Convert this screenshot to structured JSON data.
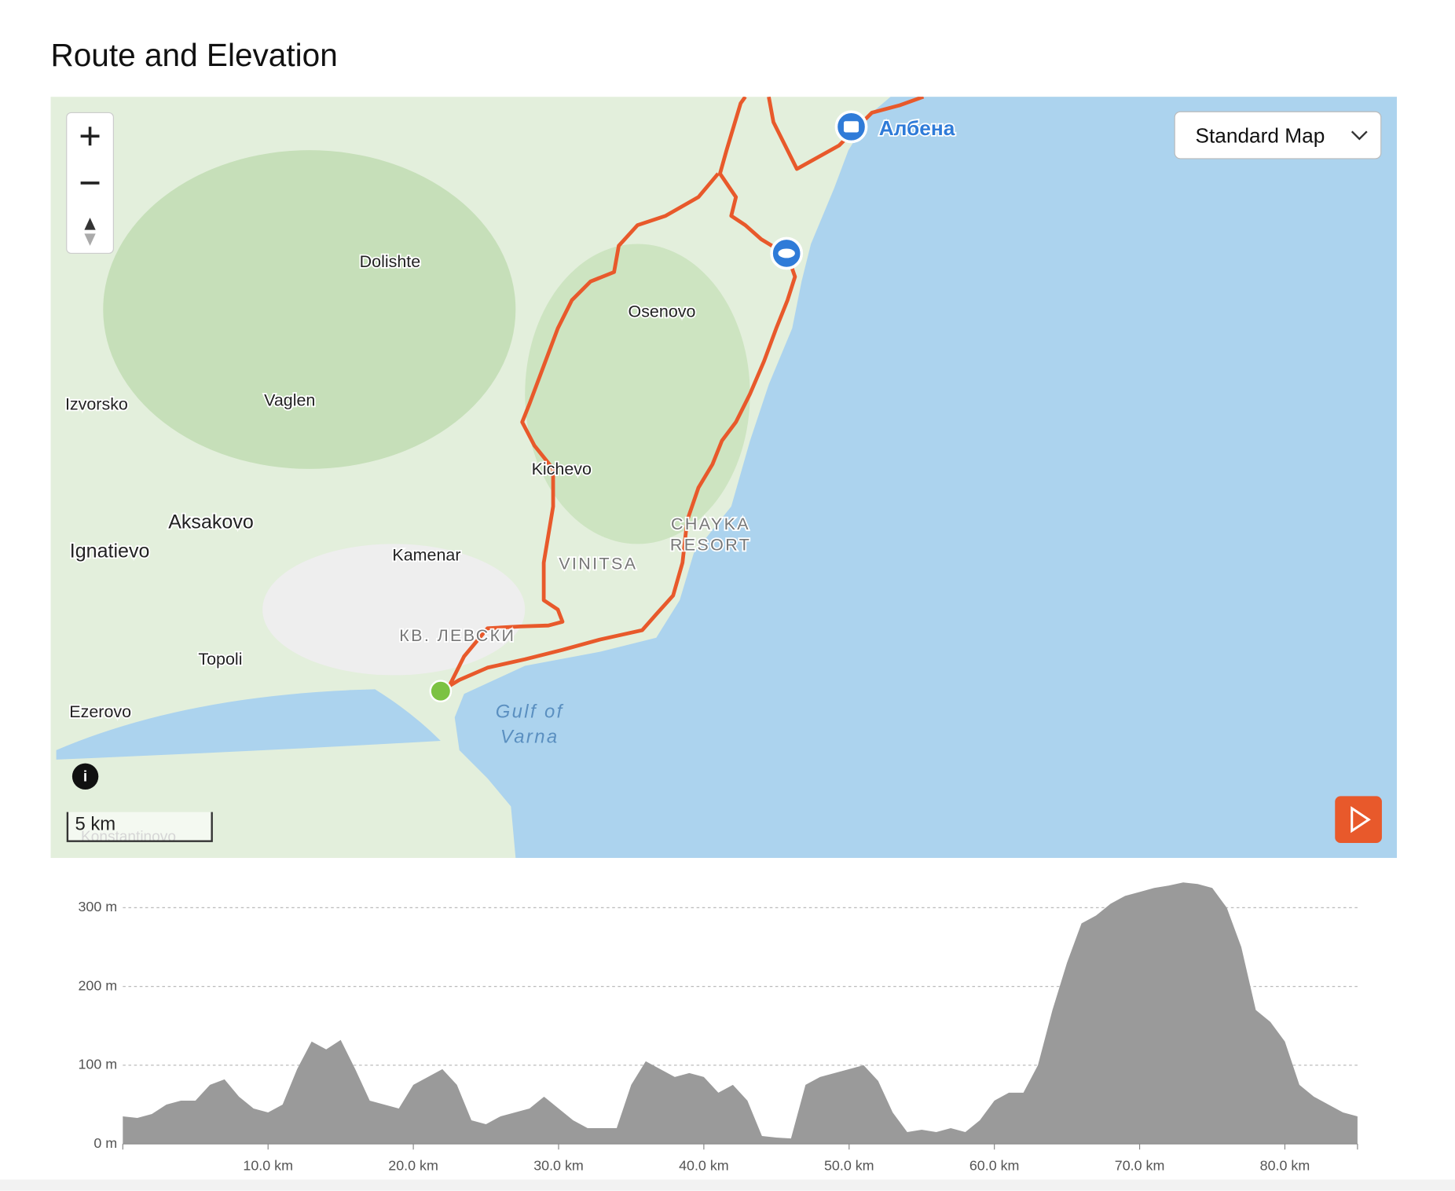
{
  "title": "Route and Elevation",
  "map": {
    "place_labels": [
      "Dolishte",
      "Osenovo",
      "Izvorsko",
      "Vaglen",
      "Kichevo",
      "Aksakovo",
      "Ignatievo",
      "Kamenar",
      "VINITSA",
      "CHAYKA",
      "RESORT",
      "КВ. ЛЕВСКИ",
      "Topoli",
      "Ezerovo",
      "Gulf of",
      "Varna",
      "Албена",
      "Konstantinovo"
    ],
    "map_style": "Standard Map",
    "scale_label": "5 km"
  },
  "chart_data": {
    "type": "area",
    "x": [
      0,
      1,
      2,
      3,
      4,
      5,
      6,
      7,
      8,
      9,
      10,
      11,
      12,
      13,
      14,
      15,
      16,
      17,
      18,
      19,
      20,
      21,
      22,
      23,
      24,
      25,
      26,
      27,
      28,
      29,
      30,
      31,
      32,
      33,
      34,
      35,
      36,
      37,
      38,
      39,
      40,
      41,
      42,
      43,
      44,
      45,
      46,
      47,
      48,
      49,
      50,
      51,
      52,
      53,
      54,
      55,
      56,
      57,
      58,
      59,
      60,
      61,
      62,
      63,
      64,
      65,
      66,
      67,
      68,
      69,
      70,
      71,
      72,
      73,
      74,
      75,
      76,
      77,
      78,
      79,
      80,
      81,
      82,
      83,
      84,
      85
    ],
    "values": [
      35,
      33,
      38,
      50,
      55,
      55,
      75,
      82,
      60,
      45,
      40,
      50,
      95,
      130,
      120,
      132,
      95,
      55,
      50,
      45,
      75,
      85,
      95,
      75,
      30,
      25,
      35,
      40,
      45,
      60,
      45,
      30,
      20,
      20,
      20,
      75,
      105,
      95,
      85,
      90,
      85,
      65,
      75,
      55,
      10,
      8,
      7,
      75,
      85,
      90,
      95,
      100,
      80,
      40,
      15,
      18,
      15,
      20,
      15,
      30,
      55,
      65,
      65,
      100,
      170,
      230,
      280,
      290,
      305,
      315,
      320,
      325,
      328,
      332,
      330,
      325,
      300,
      250,
      170,
      155,
      130,
      75,
      60,
      50,
      40,
      35
    ],
    "color": "#9a9a9a",
    "xlim": [
      0,
      85
    ],
    "ylim": [
      0,
      340
    ],
    "xticks": [
      {
        "value": 10,
        "label": "10.0 km"
      },
      {
        "value": 20,
        "label": "20.0 km"
      },
      {
        "value": 30,
        "label": "30.0 km"
      },
      {
        "value": 40,
        "label": "40.0 km"
      },
      {
        "value": 50,
        "label": "50.0 km"
      },
      {
        "value": 60,
        "label": "60.0 km"
      },
      {
        "value": 70,
        "label": "70.0 km"
      },
      {
        "value": 80,
        "label": "80.0 km"
      }
    ],
    "yticks": [
      {
        "value": 0,
        "label": "0 m"
      },
      {
        "value": 100,
        "label": "100 m"
      },
      {
        "value": 200,
        "label": "200 m"
      },
      {
        "value": 300,
        "label": "300 m"
      }
    ],
    "grid": true
  }
}
